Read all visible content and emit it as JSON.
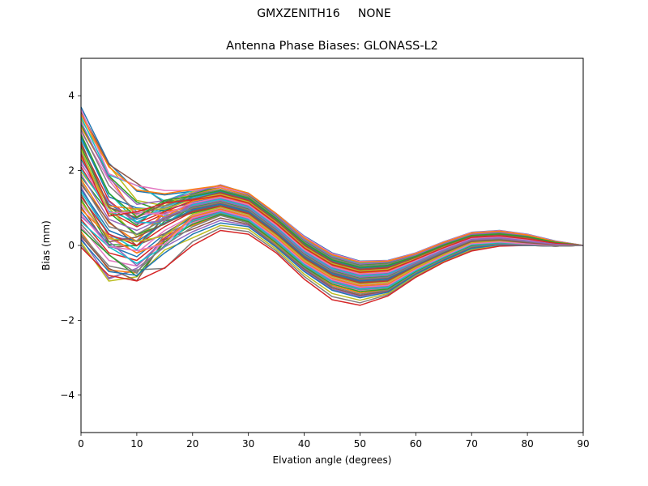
{
  "figure": {
    "suptitle": "GMXZENITH16     NONE",
    "background": "#ffffff"
  },
  "chart_data": {
    "type": "line",
    "title": "Antenna Phase Biases: GLONASS-L2",
    "xlabel": "Elvation angle (degrees)",
    "ylabel": "Bias (mm)",
    "xlim": [
      0,
      90
    ],
    "ylim": [
      -5,
      5
    ],
    "xticks": [
      0,
      10,
      20,
      30,
      40,
      50,
      60,
      70,
      80,
      90
    ],
    "xtick_labels": [
      "0",
      "10",
      "20",
      "30",
      "40",
      "50",
      "60",
      "70",
      "80",
      "90"
    ],
    "yticks": [
      -4,
      -2,
      0,
      2,
      4
    ],
    "ytick_labels": [
      "−4",
      "−2",
      "0",
      "2",
      "4"
    ],
    "grid": false,
    "legend": null,
    "x": [
      0,
      5,
      10,
      15,
      20,
      25,
      30,
      35,
      40,
      45,
      50,
      55,
      60,
      65,
      70,
      75,
      80,
      85,
      90
    ],
    "series_count_estimate": 60,
    "color_cycle": [
      "#1f77b4",
      "#ff7f0e",
      "#2ca02c",
      "#d62728",
      "#9467bd",
      "#8c564b",
      "#e377c2",
      "#7f7f7f",
      "#bcbd22",
      "#17becf"
    ],
    "envelope": {
      "upper": [
        3.7,
        2.2,
        1.5,
        1.4,
        1.5,
        1.6,
        1.4,
        0.9,
        0.3,
        -0.2,
        -0.42,
        -0.4,
        -0.2,
        0.1,
        0.35,
        0.4,
        0.3,
        0.12,
        0.0
      ],
      "lower": [
        -0.05,
        -0.8,
        -0.95,
        -0.6,
        0.0,
        0.4,
        0.3,
        -0.2,
        -0.9,
        -1.45,
        -1.6,
        -1.35,
        -0.85,
        -0.45,
        -0.15,
        -0.02,
        0.0,
        -0.02,
        0.0
      ]
    },
    "series": [
      {
        "name": "s1",
        "values": [
          3.7,
          2.2,
          1.45,
          1.35,
          1.45,
          1.55,
          1.35,
          0.85,
          0.25,
          -0.2,
          -0.42,
          -0.4,
          -0.2,
          0.1,
          0.35,
          0.4,
          0.3,
          0.12,
          0.0
        ]
      },
      {
        "name": "s2",
        "values": [
          3.5,
          2.1,
          1.48,
          1.38,
          1.5,
          1.6,
          1.4,
          0.85,
          0.2,
          -0.25,
          -0.45,
          -0.42,
          -0.22,
          0.08,
          0.33,
          0.38,
          0.28,
          0.1,
          0.0
        ]
      },
      {
        "name": "s3",
        "values": [
          3.3,
          1.8,
          1.1,
          1.2,
          1.4,
          1.62,
          1.38,
          0.8,
          0.15,
          -0.3,
          -0.5,
          -0.45,
          -0.25,
          0.05,
          0.3,
          0.36,
          0.26,
          0.1,
          0.0
        ]
      },
      {
        "name": "s4",
        "values": [
          3.1,
          1.6,
          0.9,
          1.05,
          1.35,
          1.5,
          1.3,
          0.75,
          0.1,
          -0.35,
          -0.55,
          -0.5,
          -0.28,
          0.03,
          0.28,
          0.33,
          0.25,
          0.09,
          0.0
        ]
      },
      {
        "name": "s5",
        "values": [
          2.9,
          1.3,
          1.0,
          0.95,
          1.3,
          1.45,
          1.25,
          0.7,
          0.05,
          -0.4,
          -0.6,
          -0.55,
          -0.3,
          0.0,
          0.26,
          0.3,
          0.23,
          0.08,
          0.0
        ]
      },
      {
        "name": "s6",
        "values": [
          2.7,
          1.2,
          0.6,
          0.9,
          1.2,
          1.4,
          1.2,
          0.65,
          0.0,
          -0.45,
          -0.65,
          -0.6,
          -0.33,
          -0.02,
          0.24,
          0.28,
          0.2,
          0.07,
          0.0
        ]
      },
      {
        "name": "s7",
        "values": [
          2.5,
          1.0,
          0.85,
          1.0,
          1.25,
          1.35,
          1.15,
          0.6,
          -0.05,
          -0.5,
          -0.7,
          -0.65,
          -0.36,
          -0.05,
          0.22,
          0.26,
          0.18,
          0.06,
          0.0
        ]
      },
      {
        "name": "s8",
        "values": [
          2.3,
          1.1,
          0.7,
          0.95,
          1.15,
          1.3,
          1.1,
          0.55,
          -0.1,
          -0.55,
          -0.75,
          -0.7,
          -0.4,
          -0.08,
          0.2,
          0.24,
          0.16,
          0.05,
          0.0
        ]
      },
      {
        "name": "s9",
        "values": [
          2.1,
          0.9,
          0.5,
          0.85,
          1.1,
          1.25,
          1.05,
          0.5,
          -0.15,
          -0.6,
          -0.8,
          -0.75,
          -0.43,
          -0.1,
          0.18,
          0.22,
          0.14,
          0.04,
          0.0
        ]
      },
      {
        "name": "s10",
        "values": [
          1.9,
          0.7,
          0.4,
          0.75,
          1.05,
          1.2,
          1.0,
          0.45,
          -0.2,
          -0.65,
          -0.85,
          -0.8,
          -0.46,
          -0.13,
          0.16,
          0.2,
          0.12,
          0.03,
          0.0
        ]
      },
      {
        "name": "s11",
        "values": [
          1.7,
          0.5,
          0.3,
          0.7,
          1.0,
          1.15,
          0.95,
          0.4,
          -0.25,
          -0.7,
          -0.9,
          -0.85,
          -0.5,
          -0.16,
          0.14,
          0.18,
          0.1,
          0.02,
          0.0
        ]
      },
      {
        "name": "s12",
        "values": [
          1.5,
          0.4,
          0.1,
          0.6,
          0.95,
          1.1,
          0.9,
          0.35,
          -0.3,
          -0.75,
          -0.95,
          -0.9,
          -0.53,
          -0.19,
          0.12,
          0.16,
          0.08,
          0.01,
          0.0
        ]
      },
      {
        "name": "s13",
        "values": [
          1.3,
          0.3,
          0.0,
          0.5,
          0.9,
          1.05,
          0.85,
          0.3,
          -0.35,
          -0.8,
          -1.0,
          -0.95,
          -0.56,
          -0.22,
          0.1,
          0.14,
          0.06,
          0.0,
          0.0
        ]
      },
      {
        "name": "s14",
        "values": [
          1.1,
          0.2,
          -0.2,
          0.4,
          0.8,
          1.0,
          0.8,
          0.25,
          -0.4,
          -0.85,
          -1.05,
          -1.0,
          -0.6,
          -0.25,
          0.08,
          0.12,
          0.05,
          0.0,
          0.0
        ]
      },
      {
        "name": "s15",
        "values": [
          0.9,
          0.0,
          -0.3,
          0.3,
          0.75,
          0.95,
          0.75,
          0.2,
          -0.45,
          -0.9,
          -1.1,
          -1.05,
          -0.63,
          -0.28,
          0.05,
          0.1,
          0.04,
          -0.01,
          0.0
        ]
      },
      {
        "name": "s16",
        "values": [
          0.7,
          -0.2,
          -0.4,
          0.2,
          0.7,
          0.9,
          0.7,
          0.15,
          -0.5,
          -0.95,
          -1.15,
          -1.1,
          -0.66,
          -0.3,
          0.03,
          0.08,
          0.03,
          -0.01,
          0.0
        ]
      },
      {
        "name": "s17",
        "values": [
          0.5,
          -0.4,
          -0.55,
          0.1,
          0.6,
          0.85,
          0.65,
          0.1,
          -0.55,
          -1.0,
          -1.2,
          -1.15,
          -0.7,
          -0.33,
          0.0,
          0.06,
          0.02,
          -0.01,
          0.0
        ]
      },
      {
        "name": "s18",
        "values": [
          0.3,
          -0.55,
          -0.7,
          0.0,
          0.5,
          0.8,
          0.6,
          0.0,
          -0.6,
          -1.1,
          -1.3,
          -1.2,
          -0.73,
          -0.36,
          -0.03,
          0.04,
          0.01,
          -0.02,
          0.0
        ]
      },
      {
        "name": "s19",
        "values": [
          0.15,
          -0.7,
          -0.8,
          -0.2,
          0.3,
          0.6,
          0.5,
          -0.05,
          -0.7,
          -1.2,
          -1.4,
          -1.25,
          -0.77,
          -0.4,
          -0.08,
          0.02,
          0.0,
          -0.02,
          0.0
        ]
      },
      {
        "name": "s20",
        "values": [
          -0.05,
          -0.8,
          -0.95,
          -0.6,
          0.0,
          0.4,
          0.3,
          -0.2,
          -0.9,
          -1.45,
          -1.6,
          -1.35,
          -0.85,
          -0.45,
          -0.15,
          -0.02,
          0.0,
          -0.02,
          0.0
        ]
      }
    ]
  }
}
